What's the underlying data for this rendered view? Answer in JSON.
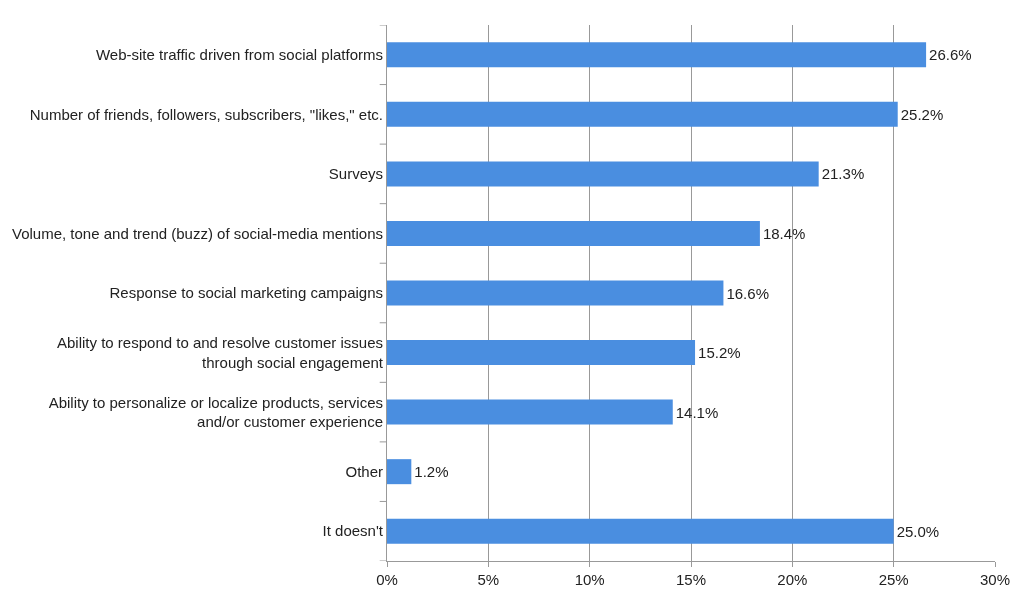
{
  "chart_data": {
    "type": "bar",
    "orientation": "horizontal",
    "categories": [
      "Web-site traffic driven from social platforms",
      "Number of friends, followers, subscribers, \"likes,\" etc.",
      "Surveys",
      "Volume, tone and trend (buzz) of social-media mentions",
      "Response to social marketing campaigns",
      "Ability to respond to and resolve customer issues\nthrough social engagement",
      "Ability to personalize or localize products, services\nand/or customer experience",
      "Other",
      "It doesn't"
    ],
    "values": [
      26.6,
      25.2,
      21.3,
      18.4,
      16.6,
      15.2,
      14.1,
      1.2,
      25.0
    ],
    "value_labels": [
      "26.6%",
      "25.2%",
      "21.3%",
      "18.4%",
      "16.6%",
      "15.2%",
      "14.1%",
      "1.2%",
      "25.0%"
    ],
    "color": "#4a8ee0",
    "xlim": [
      0,
      30
    ],
    "xticks": [
      {
        "value": 0,
        "label": "0%"
      },
      {
        "value": 5,
        "label": "5%"
      },
      {
        "value": 10,
        "label": "10%"
      },
      {
        "value": 15,
        "label": "15%"
      },
      {
        "value": 20,
        "label": "20%"
      },
      {
        "value": 25,
        "label": "25%"
      },
      {
        "value": 30,
        "label": "30%"
      }
    ],
    "grid": "x",
    "legend": false
  }
}
